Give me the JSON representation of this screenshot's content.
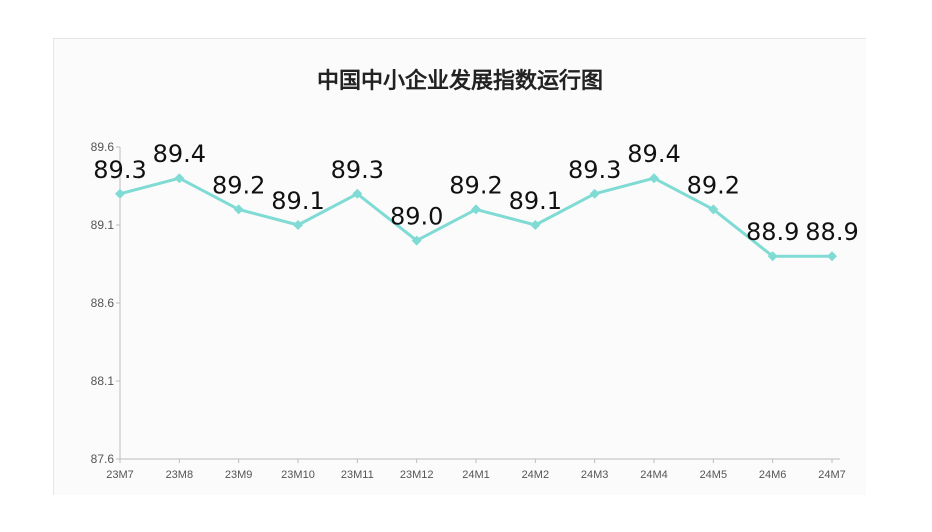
{
  "chart_data": {
    "type": "line",
    "title": "中国中小企业发展指数运行图",
    "xlabel": "",
    "ylabel": "",
    "categories": [
      "23M7",
      "23M8",
      "23M9",
      "23M10",
      "23M11",
      "23M12",
      "24M1",
      "24M2",
      "24M3",
      "24M4",
      "24M5",
      "24M6",
      "24M7"
    ],
    "series": [
      {
        "values": [
          89.3,
          89.4,
          89.2,
          89.1,
          89.3,
          89.0,
          89.2,
          89.1,
          89.3,
          89.4,
          89.2,
          88.9,
          88.9
        ]
      }
    ],
    "data_labels": [
      "89.3",
      "89.4",
      "89.2",
      "89.1",
      "89.3",
      "89.0",
      "89.2",
      "89.1",
      "89.3",
      "89.4",
      "89.2",
      "88.9",
      "88.9"
    ],
    "ylim": [
      87.6,
      89.6
    ],
    "yticks": [
      "87.6",
      "88.1",
      "88.6",
      "89.1",
      "89.6"
    ],
    "grid": false,
    "legend": "none",
    "colors": {
      "line": "#7fdbd4",
      "marker": "#7fdbd4",
      "axis": "#bdbdbd"
    }
  }
}
